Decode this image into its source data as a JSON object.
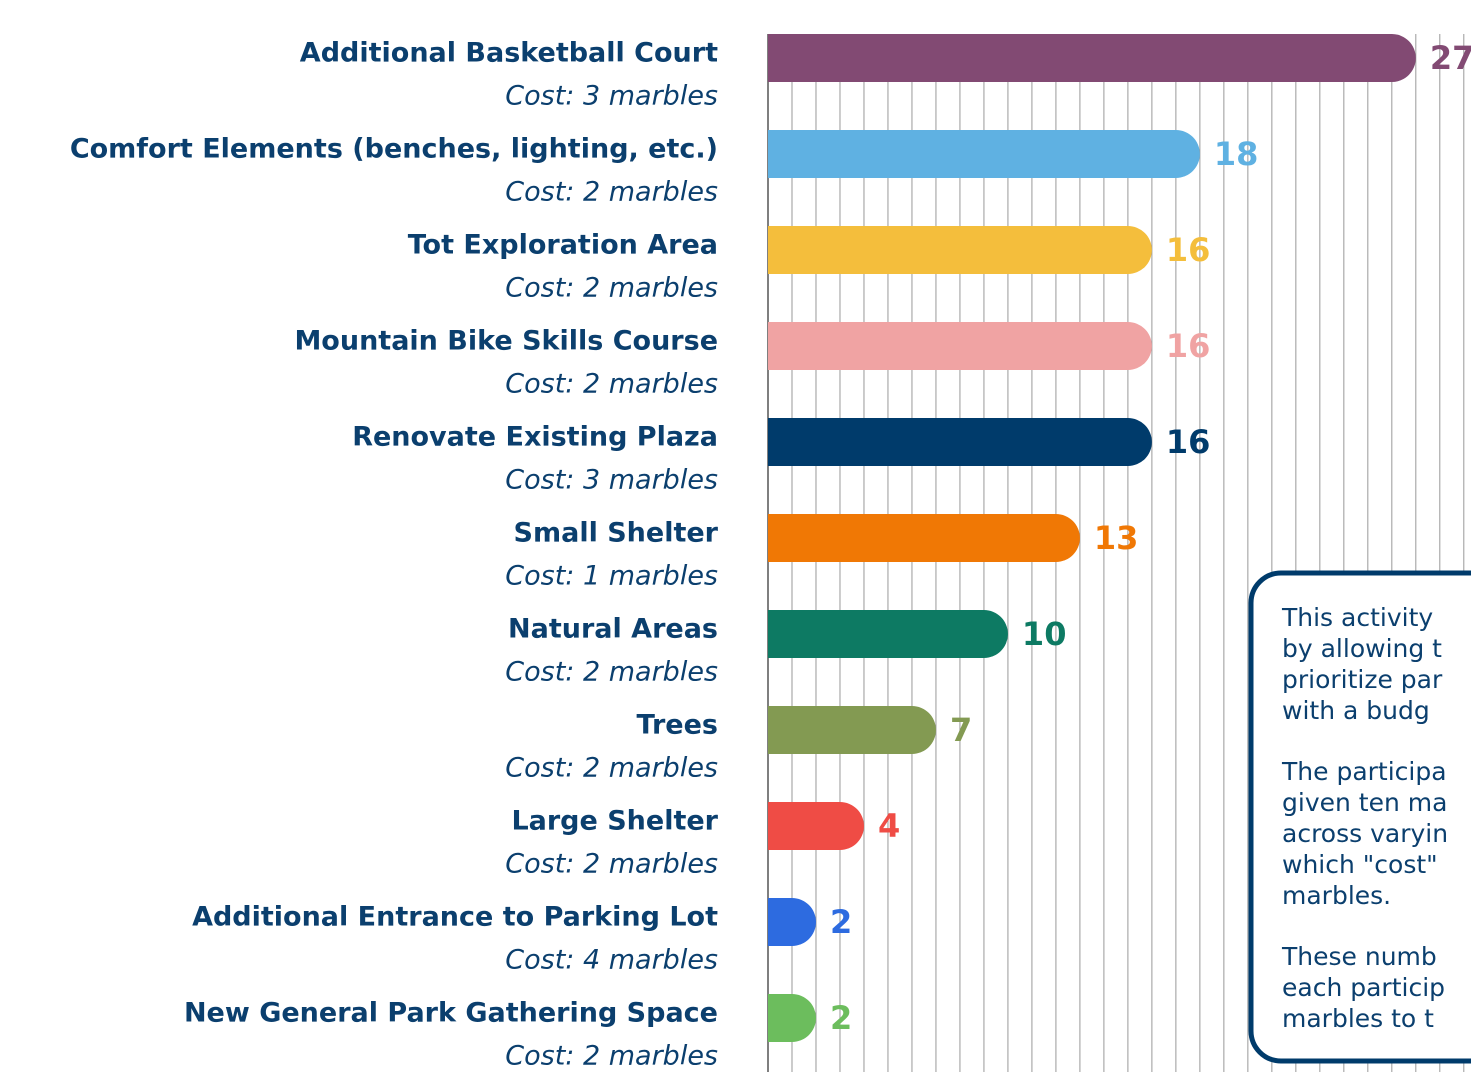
{
  "chart_data": {
    "type": "bar",
    "orientation": "horizontal",
    "categories": [
      "Additional Basketball Court",
      "Comfort Elements (benches, lighting, etc.)",
      "Tot Exploration Area",
      "Mountain Bike Skills Course",
      "Renovate Existing Plaza",
      "Small Shelter",
      "Natural Areas",
      "Trees",
      "Large Shelter",
      "Additional Entrance to Parking Lot",
      "New General Park Gathering Space"
    ],
    "subtitles": [
      "Cost: 3 marbles",
      "Cost: 2 marbles",
      "Cost: 2 marbles",
      "Cost: 2 marbles",
      "Cost: 3 marbles",
      "Cost: 1 marbles",
      "Cost: 2 marbles",
      "Cost: 2 marbles",
      "Cost: 2 marbles",
      "Cost: 4 marbles",
      "Cost: 2 marbles"
    ],
    "values": [
      27,
      18,
      16,
      16,
      16,
      13,
      10,
      7,
      4,
      2,
      2
    ],
    "colors": [
      "#824a73",
      "#5fb1e2",
      "#f4be3c",
      "#f0a3a3",
      "#003b6b",
      "#f07805",
      "#0d7a63",
      "#839a52",
      "#ef4c45",
      "#2d6be0",
      "#6cbd5d"
    ],
    "xlim": [
      0,
      29.3
    ],
    "xticks": [
      0,
      1,
      2,
      3,
      4,
      5,
      6,
      7,
      8,
      9,
      10,
      11,
      12,
      13,
      14,
      15,
      16,
      17,
      18,
      19,
      20,
      21,
      22,
      23,
      24,
      25,
      26,
      27,
      28,
      29
    ],
    "grid": true,
    "annotation": {
      "paragraphs": [
        [
          "This activity",
          "by allowing t",
          "prioritize par",
          "with a budg"
        ],
        [
          "The participa",
          "given ten ma",
          "across varyin",
          "which \"cost\"",
          "marbles."
        ],
        [
          "These numb",
          "each particip",
          "marbles to t"
        ]
      ]
    }
  }
}
